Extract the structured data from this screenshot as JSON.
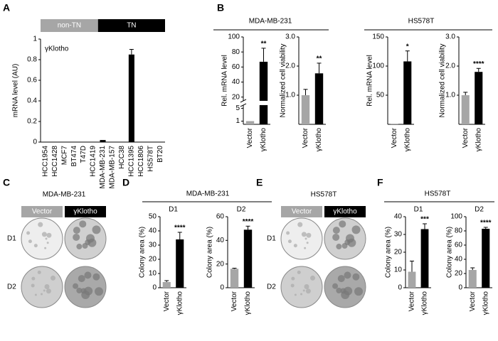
{
  "panel_labels": [
    "A",
    "B",
    "C",
    "D",
    "E",
    "F"
  ],
  "headers": [
    "MDA-MB-231",
    "HS578T",
    "MDA-MB-231",
    "HS578T"
  ],
  "plates": [
    {
      "title": "MDA-MB-231",
      "labels": [
        "Vector",
        "γKlotho"
      ],
      "rows": [
        "D1",
        "D2"
      ]
    },
    {
      "title": "HS578T",
      "labels": [
        "Vector",
        "γKlotho"
      ],
      "rows": [
        "D1",
        "D2"
      ]
    }
  ],
  "chart_data": [
    {
      "type": "bar",
      "ylabel": "mRNA level (AU)",
      "annotation": "γKlotho",
      "groups": [
        "non-TN",
        "TN"
      ],
      "categories": [
        "HCC1954",
        "HCC1428",
        "MCF7",
        "BT474",
        "T47D",
        "HCC1419",
        "MDA-MB-231",
        "MDA-MB-157",
        "HCC38",
        "HCC1395",
        "HCC1806",
        "HS578T",
        "BT20"
      ],
      "values": [
        0,
        0,
        0,
        0,
        0,
        0,
        0.02,
        0,
        0,
        0.85,
        0,
        0,
        0
      ],
      "errors": [
        null,
        null,
        null,
        null,
        null,
        null,
        null,
        null,
        null,
        0.05,
        null,
        null,
        null
      ],
      "colors": [
        "#000000",
        "#000000",
        "#000000",
        "#000000",
        "#000000",
        "#000000",
        "#000000",
        "#000000",
        "#000000",
        "#000000",
        "#000000",
        "#000000",
        "#000000"
      ],
      "ylim": [
        0,
        1
      ],
      "yticks": [
        0,
        0.2,
        0.4,
        0.6,
        0.8,
        1
      ]
    },
    {
      "type": "bar",
      "ylabel": "Rel. mRNA level",
      "categories": [
        "Vector",
        "γKlotho"
      ],
      "values": [
        1,
        67
      ],
      "errors": [
        null,
        18
      ],
      "colors": [
        "#a6a6a6",
        "#000000"
      ],
      "significance": [
        null,
        "**"
      ],
      "ylim": [
        0,
        100
      ],
      "ybreak": [
        6,
        15
      ],
      "yticks": [
        1,
        5,
        20,
        40,
        60,
        80,
        100
      ]
    },
    {
      "type": "bar",
      "ylabel": "Normalized cell viability",
      "categories": [
        "Vector",
        "γKlotho"
      ],
      "values": [
        1,
        1.75
      ],
      "errors": [
        0.2,
        0.35
      ],
      "colors": [
        "#a6a6a6",
        "#000000"
      ],
      "significance": [
        null,
        "**"
      ],
      "ylim": [
        0,
        3
      ],
      "yticks": [
        {
          "value": 1,
          "label": "1.0"
        },
        {
          "value": 2,
          "label": "2.0"
        },
        {
          "value": 3,
          "label": "3.0"
        }
      ]
    },
    {
      "type": "bar",
      "ylabel": "Rel. mRNA level",
      "categories": [
        "Vector",
        "γKlotho"
      ],
      "values": [
        1,
        108
      ],
      "errors": [
        null,
        18
      ],
      "colors": [
        "#a6a6a6",
        "#000000"
      ],
      "significance": [
        null,
        "*"
      ],
      "ylim": [
        0,
        150
      ],
      "yticks": [
        50,
        100,
        150
      ]
    },
    {
      "type": "bar",
      "ylabel": "Normalized cell viability",
      "categories": [
        "Vector",
        "γKlotho"
      ],
      "values": [
        1,
        1.8
      ],
      "errors": [
        0.1,
        0.12
      ],
      "colors": [
        "#a6a6a6",
        "#000000"
      ],
      "significance": [
        null,
        "****"
      ],
      "ylim": [
        0,
        3
      ],
      "yticks": [
        {
          "value": 1,
          "label": "1.0"
        },
        {
          "value": 2,
          "label": "2.0"
        },
        {
          "value": 3,
          "label": "3.0"
        }
      ]
    },
    {
      "type": "bar",
      "title": "D1",
      "ylabel": "Colony area (%)",
      "categories": [
        "Vector",
        "γKlotho"
      ],
      "values": [
        4,
        34
      ],
      "errors": [
        1,
        5
      ],
      "colors": [
        "#a6a6a6",
        "#000000"
      ],
      "significance": [
        null,
        "****"
      ],
      "ylim": [
        0,
        50
      ],
      "yticks": [
        0,
        10,
        20,
        30,
        40,
        50
      ]
    },
    {
      "type": "bar",
      "title": "D2",
      "ylabel": "Colony area (%)",
      "categories": [
        "Vector",
        "γKlotho"
      ],
      "values": [
        16,
        49
      ],
      "errors": [
        0.5,
        3
      ],
      "colors": [
        "#a6a6a6",
        "#000000"
      ],
      "significance": [
        null,
        "****"
      ],
      "ylim": [
        0,
        60
      ],
      "yticks": [
        0,
        20,
        40,
        60
      ]
    },
    {
      "type": "bar",
      "title": "D1",
      "ylabel": "Colony area (%)",
      "categories": [
        "Vector",
        "γKlotho"
      ],
      "values": [
        9,
        33
      ],
      "errors": [
        6,
        3
      ],
      "colors": [
        "#a6a6a6",
        "#000000"
      ],
      "significance": [
        null,
        "***"
      ],
      "ylim": [
        0,
        40
      ],
      "yticks": [
        0,
        10,
        20,
        30,
        40
      ]
    },
    {
      "type": "bar",
      "title": "D2",
      "ylabel": "Colony area (%)",
      "categories": [
        "Vector",
        "γKlotho"
      ],
      "values": [
        25,
        83
      ],
      "errors": [
        3,
        2
      ],
      "colors": [
        "#a6a6a6",
        "#000000"
      ],
      "significance": [
        null,
        "****"
      ],
      "ylim": [
        0,
        100
      ],
      "yticks": [
        0,
        20,
        40,
        60,
        80,
        100
      ]
    }
  ]
}
